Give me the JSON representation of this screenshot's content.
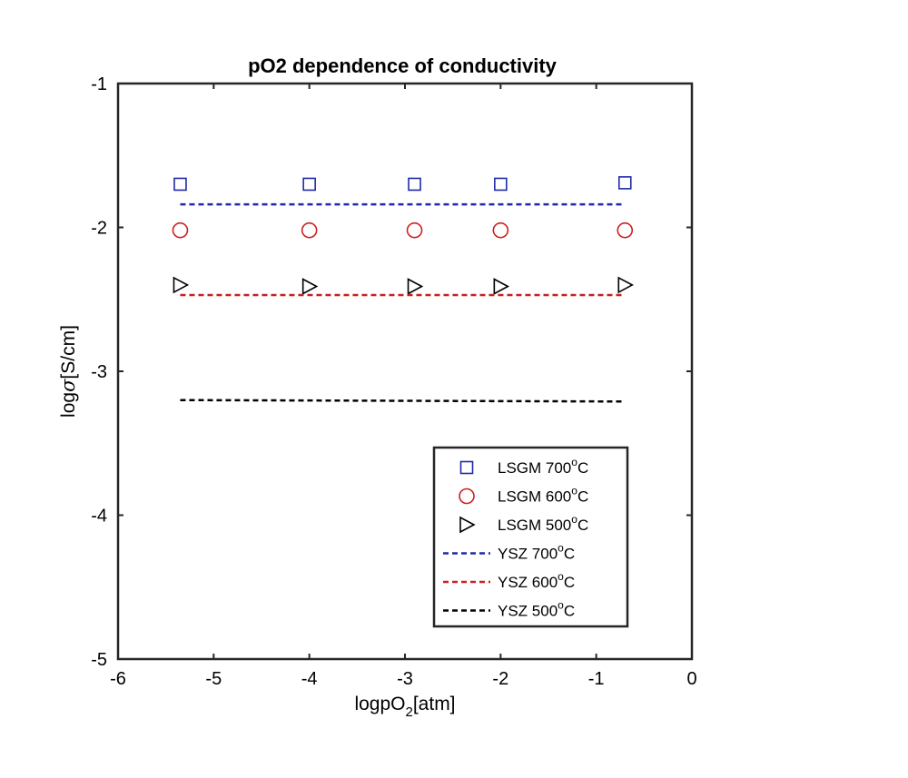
{
  "chart_data": {
    "type": "scatter",
    "title": "pO2 dependence of conductivity",
    "xlabel": {
      "prefix": "logpO",
      "sub": "2",
      "suffix": "[atm]"
    },
    "ylabel": {
      "prefix": "log",
      "symbol": "σ",
      "suffix": "[S/cm]"
    },
    "xlim": [
      -6,
      0
    ],
    "ylim": [
      -5,
      -1
    ],
    "xticks": [
      -6,
      -5,
      -4,
      -3,
      -2,
      -1,
      0
    ],
    "yticks": [
      -5,
      -4,
      -3,
      -2,
      -1
    ],
    "xtick_labels": [
      "-6",
      "-5",
      "-4",
      "-3",
      "-2",
      "-1",
      "0"
    ],
    "ytick_labels": [
      "-5",
      "-4",
      "-3",
      "-2",
      "-1"
    ],
    "grid": false,
    "legend_position": "bottom-right",
    "series": [
      {
        "name": "LSGM 700°C",
        "label_base": "LSGM 700",
        "label_sup": "o",
        "label_unit": "C",
        "kind": "marker",
        "marker": "square",
        "color": "#1f2aa8",
        "x": [
          -5.35,
          -4.0,
          -2.9,
          -2.0,
          -0.7
        ],
        "y": [
          -1.7,
          -1.7,
          -1.7,
          -1.7,
          -1.69
        ]
      },
      {
        "name": "LSGM 600°C",
        "label_base": "LSGM 600",
        "label_sup": "o",
        "label_unit": "C",
        "kind": "marker",
        "marker": "circle",
        "color": "#cc1f1f",
        "x": [
          -5.35,
          -4.0,
          -2.9,
          -2.0,
          -0.7
        ],
        "y": [
          -2.02,
          -2.02,
          -2.02,
          -2.02,
          -2.02
        ]
      },
      {
        "name": "LSGM 500°C",
        "label_base": "LSGM 500",
        "label_sup": "o",
        "label_unit": "C",
        "kind": "marker",
        "marker": "triangle-right",
        "color": "#000000",
        "x": [
          -5.35,
          -4.0,
          -2.9,
          -2.0,
          -0.7
        ],
        "y": [
          -2.4,
          -2.41,
          -2.41,
          -2.41,
          -2.4
        ]
      },
      {
        "name": "YSZ 700°C",
        "label_base": "YSZ 700",
        "label_sup": "o",
        "label_unit": "C",
        "kind": "line",
        "dash": "dashed",
        "color": "#1f2aa8",
        "x": [
          -5.35,
          -0.7
        ],
        "y": [
          -1.84,
          -1.84
        ]
      },
      {
        "name": "YSZ 600°C",
        "label_base": "YSZ 600",
        "label_sup": "o",
        "label_unit": "C",
        "kind": "line",
        "dash": "dashed",
        "color": "#cc1f1f",
        "x": [
          -5.35,
          -0.7
        ],
        "y": [
          -2.47,
          -2.47
        ]
      },
      {
        "name": "YSZ 500°C",
        "label_base": "YSZ 500",
        "label_sup": "o",
        "label_unit": "C",
        "kind": "line",
        "dash": "dashed",
        "color": "#000000",
        "x": [
          -5.35,
          -0.7
        ],
        "y": [
          -3.2,
          -3.21
        ]
      }
    ]
  }
}
